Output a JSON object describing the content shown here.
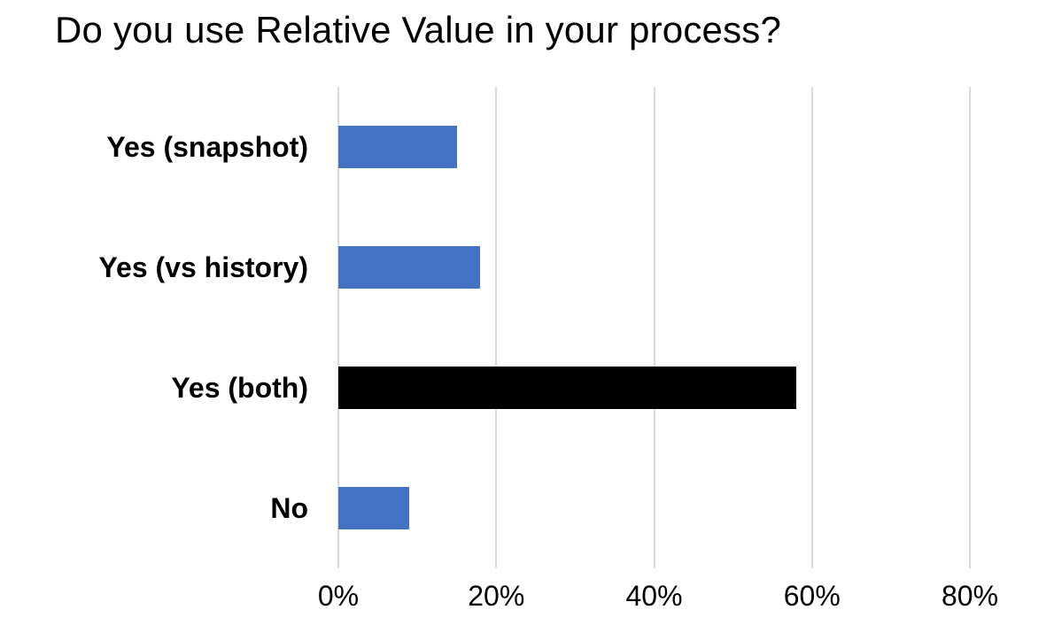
{
  "chart_data": {
    "type": "bar",
    "orientation": "horizontal",
    "title": "Do you use Relative Value in your process?",
    "categories": [
      "Yes (snapshot)",
      "Yes (vs history)",
      "Yes (both)",
      "No"
    ],
    "values": [
      15,
      18,
      58,
      9
    ],
    "bar_colors": [
      "#4472C4",
      "#4472C4",
      "#000000",
      "#4472C4"
    ],
    "x_ticks": [
      "0%",
      "20%",
      "40%",
      "60%",
      "80%"
    ],
    "x_tick_values": [
      0,
      20,
      40,
      60,
      80
    ],
    "xlim": [
      0,
      80
    ],
    "xlabel": "",
    "ylabel": "",
    "grid": "vertical-only",
    "legend": "none"
  },
  "colors": {
    "background": "#FFFFFF",
    "bar_blue": "#4472C4",
    "bar_black": "#000000",
    "gridline": "#D9D9D9",
    "text": "#000000"
  }
}
